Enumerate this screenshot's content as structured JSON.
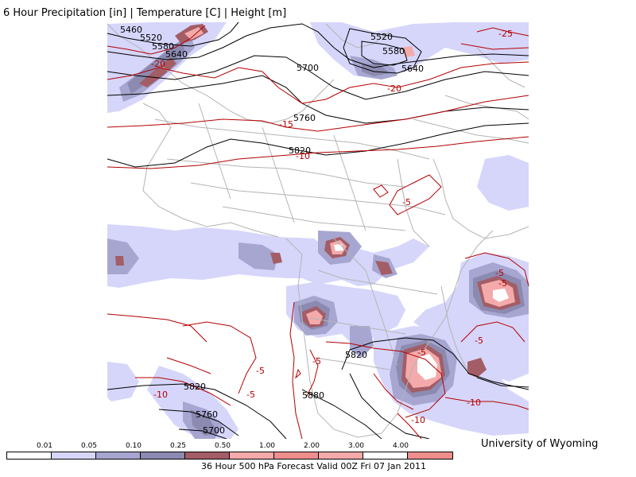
{
  "title": "6 Hour Precipitation [in] | Temperature [C] | Height [m]",
  "credit": "University of Wyoming",
  "caption": "36 Hour 500 hPa Forecast Valid 00Z Fri 07 Jan 2011",
  "colors": {
    "precip_1": "#d6d6fb",
    "precip_2": "#a6a6d1",
    "precip_3": "#8c8ab1",
    "precip_4": "#a35d66",
    "precip_5": "#f08e8e",
    "precip_6": "#f4aaaa",
    "precip_7": "#ffffff",
    "height_contour": "#000000",
    "temp_contour": "#b40000",
    "borders": "#b4b4b4"
  },
  "legend": {
    "ticks": [
      "0.01",
      "0.05",
      "0.10",
      "0.25",
      "0.50",
      "1.00",
      "2.00",
      "3.00",
      "4.00"
    ],
    "segments": [
      "#ffffff",
      "#d6d6fb",
      "#a6a6d1",
      "#8c8ab1",
      "#a35d66",
      "#f4aaaa",
      "#f08e8e",
      "#f4aaaa",
      "#ffffff",
      "#f08e8e"
    ]
  },
  "height_labels": [
    "5460",
    "5520",
    "5580",
    "5640",
    "5700",
    "5520",
    "5580",
    "5640",
    "5760",
    "5820",
    "5820",
    "5880",
    "5820",
    "5760",
    "5700"
  ],
  "temp_labels": [
    "-20",
    "-25",
    "-20",
    "-15",
    "-10",
    "-5",
    "-5",
    "-5",
    "-5",
    "-5",
    "-5",
    "-5",
    "-10",
    "-5",
    "-10",
    "-10"
  ]
}
